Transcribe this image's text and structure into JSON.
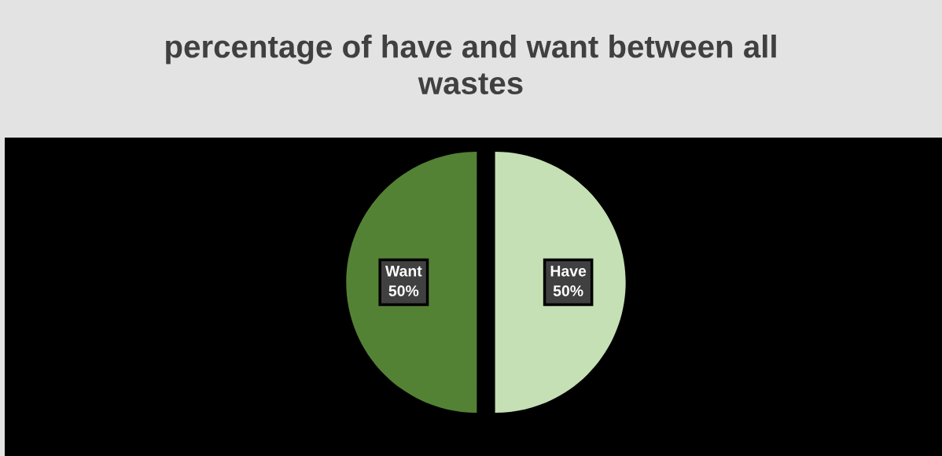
{
  "chart_data": {
    "type": "pie",
    "title": "percentage of have and want between all wastes",
    "categories": [
      "Have",
      "Want"
    ],
    "values": [
      50,
      50
    ],
    "colors": [
      "#c5e0b4",
      "#548235"
    ],
    "value_labels": [
      "50%",
      "50%"
    ]
  }
}
